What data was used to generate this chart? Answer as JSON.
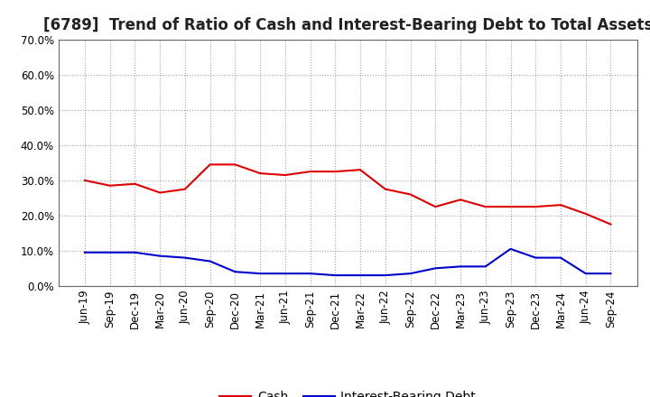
{
  "title": "[6789]  Trend of Ratio of Cash and Interest-Bearing Debt to Total Assets",
  "x_labels": [
    "Jun-19",
    "Sep-19",
    "Dec-19",
    "Mar-20",
    "Jun-20",
    "Sep-20",
    "Dec-20",
    "Mar-21",
    "Jun-21",
    "Sep-21",
    "Dec-21",
    "Mar-22",
    "Jun-22",
    "Sep-22",
    "Dec-22",
    "Mar-23",
    "Jun-23",
    "Sep-23",
    "Dec-23",
    "Mar-24",
    "Jun-24",
    "Sep-24"
  ],
  "cash": [
    30.0,
    28.5,
    29.0,
    26.5,
    27.5,
    34.5,
    34.5,
    32.0,
    31.5,
    32.5,
    32.5,
    33.0,
    27.5,
    26.0,
    22.5,
    24.5,
    22.5,
    22.5,
    22.5,
    23.0,
    20.5,
    17.5
  ],
  "interest_bearing_debt": [
    9.5,
    9.5,
    9.5,
    8.5,
    8.0,
    7.0,
    4.0,
    3.5,
    3.5,
    3.5,
    3.0,
    3.0,
    3.0,
    3.5,
    5.0,
    5.5,
    5.5,
    10.5,
    8.0,
    8.0,
    3.5,
    3.5
  ],
  "cash_color": "#dd0000",
  "debt_color": "#0000cc",
  "ylim": [
    0,
    70
  ],
  "yticks": [
    0,
    10,
    20,
    30,
    40,
    50,
    60,
    70
  ],
  "background_color": "#ffffff",
  "grid_color": "#999999",
  "legend_cash": "Cash",
  "legend_debt": "Interest-Bearing Debt",
  "title_fontsize": 12,
  "axis_fontsize": 8.5,
  "legend_fontsize": 10
}
